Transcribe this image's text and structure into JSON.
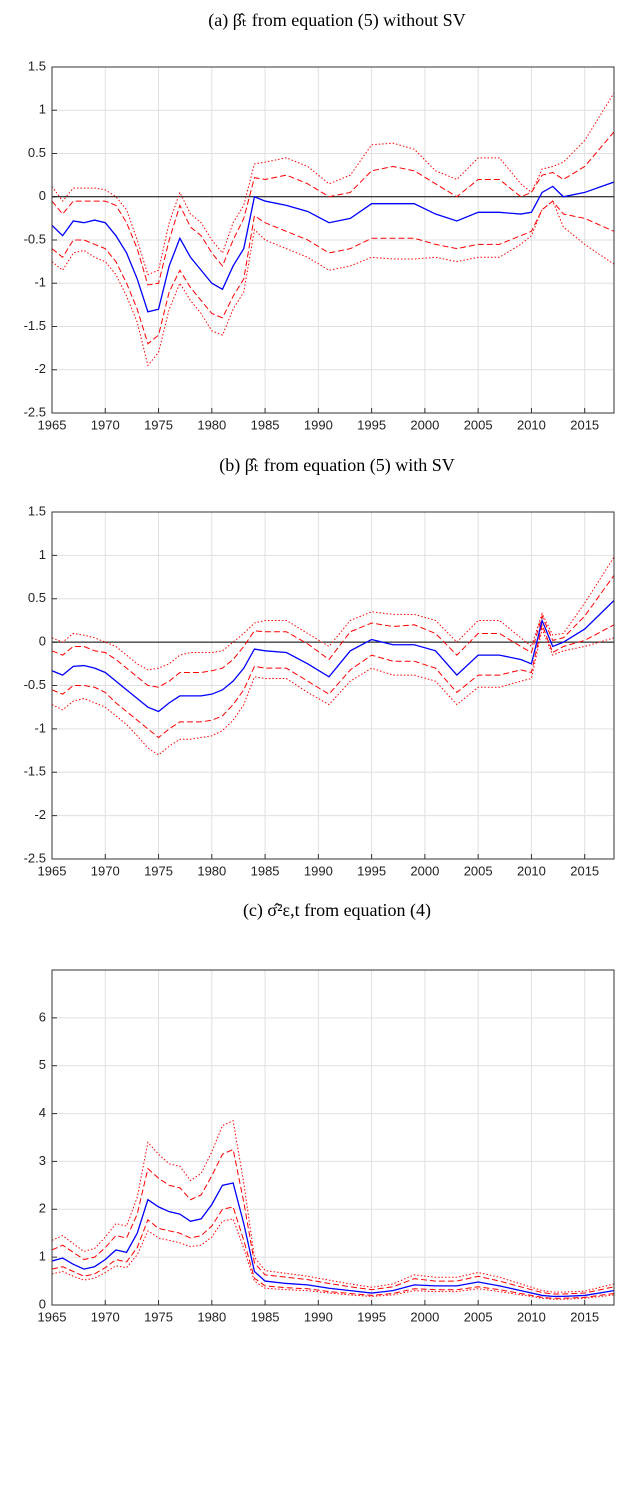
{
  "chart_data": [
    {
      "type": "line",
      "title": "(a) β̂ₜ from equation (5) without SV",
      "x": [
        1965,
        1966,
        1967,
        1968,
        1969,
        1970,
        1971,
        1972,
        1973,
        1974,
        1975,
        1976,
        1977,
        1978,
        1979,
        1980,
        1981,
        1982,
        1983,
        1984,
        1985,
        1987,
        1989,
        1991,
        1993,
        1995,
        1997,
        1999,
        2001,
        2003,
        2005,
        2007,
        2009,
        2010,
        2011,
        2012,
        2013,
        2015,
        2017.75
      ],
      "xlim": [
        1965,
        2017.75
      ],
      "xticks": [
        1965,
        1970,
        1975,
        1980,
        1985,
        1990,
        1995,
        2000,
        2005,
        2010,
        2015
      ],
      "ylim": [
        -2.5,
        1.5
      ],
      "yticks": [
        -2.5,
        -2,
        -1.5,
        -1,
        -0.5,
        0,
        0.5,
        1,
        1.5
      ],
      "grid": true,
      "hline": 0,
      "series": [
        {
          "color": "#ff0000",
          "style": "dotted",
          "values": [
            0.12,
            -0.05,
            0.1,
            0.1,
            0.1,
            0.08,
            0.0,
            -0.15,
            -0.5,
            -0.9,
            -0.85,
            -0.3,
            0.05,
            -0.2,
            -0.3,
            -0.5,
            -0.65,
            -0.3,
            -0.1,
            0.38,
            0.4,
            0.45,
            0.35,
            0.15,
            0.25,
            0.6,
            0.62,
            0.55,
            0.3,
            0.2,
            0.45,
            0.45,
            0.15,
            0.05,
            0.32,
            0.35,
            0.4,
            0.65,
            1.2
          ]
        },
        {
          "color": "#ff0000",
          "style": "dotted",
          "values": [
            -0.75,
            -0.85,
            -0.65,
            -0.62,
            -0.7,
            -0.75,
            -0.9,
            -1.15,
            -1.45,
            -1.95,
            -1.8,
            -1.3,
            -1.0,
            -1.2,
            -1.35,
            -1.55,
            -1.6,
            -1.3,
            -1.1,
            -0.38,
            -0.5,
            -0.6,
            -0.7,
            -0.85,
            -0.8,
            -0.7,
            -0.72,
            -0.72,
            -0.7,
            -0.75,
            -0.7,
            -0.7,
            -0.55,
            -0.45,
            -0.15,
            -0.05,
            -0.35,
            -0.55,
            -0.78
          ]
        },
        {
          "color": "#ff0000",
          "style": "dashed",
          "values": [
            -0.05,
            -0.2,
            -0.05,
            -0.05,
            -0.05,
            -0.05,
            -0.1,
            -0.3,
            -0.6,
            -1.02,
            -1.0,
            -0.5,
            -0.1,
            -0.35,
            -0.45,
            -0.65,
            -0.8,
            -0.5,
            -0.25,
            0.22,
            0.2,
            0.25,
            0.15,
            0.0,
            0.05,
            0.3,
            0.35,
            0.3,
            0.15,
            0.0,
            0.2,
            0.2,
            0.0,
            0.05,
            0.25,
            0.28,
            0.2,
            0.35,
            0.75
          ]
        },
        {
          "color": "#ff0000",
          "style": "dashed",
          "values": [
            -0.6,
            -0.7,
            -0.5,
            -0.5,
            -0.55,
            -0.6,
            -0.75,
            -1.0,
            -1.3,
            -1.7,
            -1.6,
            -1.1,
            -0.85,
            -1.05,
            -1.2,
            -1.35,
            -1.4,
            -1.15,
            -0.95,
            -0.22,
            -0.3,
            -0.4,
            -0.5,
            -0.65,
            -0.6,
            -0.48,
            -0.48,
            -0.48,
            -0.55,
            -0.6,
            -0.55,
            -0.55,
            -0.45,
            -0.4,
            -0.15,
            -0.05,
            -0.2,
            -0.25,
            -0.4
          ]
        },
        {
          "color": "#0000ff",
          "style": "solid",
          "values": [
            -0.33,
            -0.45,
            -0.28,
            -0.3,
            -0.27,
            -0.3,
            -0.45,
            -0.65,
            -0.95,
            -1.33,
            -1.3,
            -0.8,
            -0.48,
            -0.7,
            -0.85,
            -1.0,
            -1.07,
            -0.8,
            -0.6,
            0.0,
            -0.05,
            -0.1,
            -0.17,
            -0.3,
            -0.25,
            -0.08,
            -0.08,
            -0.08,
            -0.2,
            -0.28,
            -0.18,
            -0.18,
            -0.2,
            -0.18,
            0.05,
            0.12,
            0.0,
            0.05,
            0.17
          ]
        }
      ]
    },
    {
      "type": "line",
      "title": "(b) β̂ₜ from equation (5) with SV",
      "x": [
        1965,
        1966,
        1967,
        1968,
        1969,
        1970,
        1971,
        1972,
        1973,
        1974,
        1975,
        1976,
        1977,
        1978,
        1979,
        1980,
        1981,
        1982,
        1983,
        1984,
        1985,
        1987,
        1989,
        1991,
        1993,
        1995,
        1997,
        1999,
        2001,
        2003,
        2005,
        2007,
        2009,
        2010,
        2011,
        2012,
        2013,
        2015,
        2017.75
      ],
      "xlim": [
        1965,
        2017.75
      ],
      "xticks": [
        1965,
        1970,
        1975,
        1980,
        1985,
        1990,
        1995,
        2000,
        2005,
        2010,
        2015
      ],
      "ylim": [
        -2.5,
        1.5
      ],
      "yticks": [
        -2.5,
        -2,
        -1.5,
        -1,
        -0.5,
        0,
        0.5,
        1,
        1.5
      ],
      "grid": true,
      "hline": 0,
      "series": [
        {
          "color": "#ff0000",
          "style": "dotted",
          "values": [
            0.05,
            0.0,
            0.1,
            0.08,
            0.05,
            0.0,
            -0.05,
            -0.15,
            -0.25,
            -0.32,
            -0.3,
            -0.25,
            -0.15,
            -0.12,
            -0.12,
            -0.12,
            -0.1,
            0.0,
            0.1,
            0.22,
            0.25,
            0.25,
            0.1,
            -0.05,
            0.25,
            0.35,
            0.32,
            0.32,
            0.25,
            0.0,
            0.25,
            0.25,
            0.05,
            -0.05,
            0.33,
            0.08,
            0.1,
            0.45,
            0.98
          ]
        },
        {
          "color": "#ff0000",
          "style": "dotted",
          "values": [
            -0.72,
            -0.78,
            -0.68,
            -0.65,
            -0.7,
            -0.75,
            -0.85,
            -0.95,
            -1.08,
            -1.22,
            -1.3,
            -1.2,
            -1.12,
            -1.12,
            -1.1,
            -1.08,
            -1.02,
            -0.9,
            -0.72,
            -0.4,
            -0.42,
            -0.42,
            -0.58,
            -0.72,
            -0.45,
            -0.3,
            -0.38,
            -0.38,
            -0.45,
            -0.72,
            -0.52,
            -0.52,
            -0.45,
            -0.42,
            0.15,
            -0.15,
            -0.1,
            -0.05,
            0.05
          ]
        },
        {
          "color": "#ff0000",
          "style": "dashed",
          "values": [
            -0.1,
            -0.15,
            -0.05,
            -0.05,
            -0.1,
            -0.12,
            -0.2,
            -0.3,
            -0.4,
            -0.5,
            -0.52,
            -0.45,
            -0.35,
            -0.35,
            -0.35,
            -0.33,
            -0.3,
            -0.2,
            -0.05,
            0.13,
            0.12,
            0.12,
            -0.02,
            -0.2,
            0.12,
            0.22,
            0.18,
            0.2,
            0.1,
            -0.15,
            0.1,
            0.1,
            -0.05,
            -0.12,
            0.3,
            0.02,
            0.05,
            0.3,
            0.77
          ]
        },
        {
          "color": "#ff0000",
          "style": "dashed",
          "values": [
            -0.55,
            -0.6,
            -0.5,
            -0.5,
            -0.52,
            -0.58,
            -0.7,
            -0.8,
            -0.9,
            -1.0,
            -1.1,
            -1.0,
            -0.92,
            -0.92,
            -0.92,
            -0.9,
            -0.85,
            -0.72,
            -0.55,
            -0.28,
            -0.3,
            -0.3,
            -0.45,
            -0.6,
            -0.32,
            -0.15,
            -0.22,
            -0.22,
            -0.3,
            -0.58,
            -0.38,
            -0.38,
            -0.32,
            -0.35,
            0.2,
            -0.12,
            -0.05,
            0.02,
            0.2
          ]
        },
        {
          "color": "#0000ff",
          "style": "solid",
          "values": [
            -0.33,
            -0.38,
            -0.28,
            -0.27,
            -0.3,
            -0.35,
            -0.45,
            -0.55,
            -0.65,
            -0.75,
            -0.8,
            -0.7,
            -0.62,
            -0.62,
            -0.62,
            -0.6,
            -0.55,
            -0.45,
            -0.3,
            -0.08,
            -0.1,
            -0.12,
            -0.25,
            -0.4,
            -0.1,
            0.03,
            -0.03,
            -0.03,
            -0.1,
            -0.38,
            -0.15,
            -0.15,
            -0.2,
            -0.25,
            0.25,
            -0.05,
            0.0,
            0.15,
            0.48
          ]
        }
      ]
    },
    {
      "type": "line",
      "title": "(c) σ̂²ε,t from equation (4)",
      "x": [
        1965,
        1966,
        1967,
        1968,
        1969,
        1970,
        1971,
        1972,
        1973,
        1974,
        1975,
        1976,
        1977,
        1978,
        1979,
        1980,
        1981,
        1982,
        1983,
        1984,
        1985,
        1987,
        1989,
        1991,
        1993,
        1995,
        1997,
        1999,
        2001,
        2003,
        2005,
        2007,
        2009,
        2010,
        2011,
        2012,
        2013,
        2015,
        2017.75
      ],
      "xlim": [
        1965,
        2017.75
      ],
      "xticks": [
        1965,
        1970,
        1975,
        1980,
        1985,
        1990,
        1995,
        2000,
        2005,
        2010,
        2015
      ],
      "ylim": [
        0,
        7
      ],
      "yticks": [
        0,
        1,
        2,
        3,
        4,
        5,
        6
      ],
      "grid": true,
      "series": [
        {
          "color": "#ff0000",
          "style": "dotted",
          "values": [
            1.35,
            1.45,
            1.28,
            1.12,
            1.18,
            1.42,
            1.7,
            1.65,
            2.25,
            3.4,
            3.15,
            2.95,
            2.9,
            2.6,
            2.75,
            3.2,
            3.75,
            3.85,
            2.55,
            1.0,
            0.72,
            0.66,
            0.6,
            0.52,
            0.44,
            0.37,
            0.44,
            0.63,
            0.58,
            0.58,
            0.68,
            0.58,
            0.44,
            0.37,
            0.3,
            0.27,
            0.27,
            0.29,
            0.44
          ]
        },
        {
          "color": "#ff0000",
          "style": "dotted",
          "values": [
            0.65,
            0.7,
            0.6,
            0.52,
            0.56,
            0.68,
            0.82,
            0.78,
            1.05,
            1.55,
            1.4,
            1.35,
            1.3,
            1.22,
            1.25,
            1.42,
            1.75,
            1.8,
            1.18,
            0.5,
            0.35,
            0.32,
            0.3,
            0.25,
            0.21,
            0.18,
            0.21,
            0.3,
            0.28,
            0.28,
            0.34,
            0.28,
            0.21,
            0.18,
            0.14,
            0.12,
            0.12,
            0.14,
            0.21
          ]
        },
        {
          "color": "#ff0000",
          "style": "dashed",
          "values": [
            1.15,
            1.25,
            1.1,
            0.95,
            1.0,
            1.2,
            1.45,
            1.4,
            1.9,
            2.85,
            2.65,
            2.5,
            2.45,
            2.2,
            2.3,
            2.7,
            3.15,
            3.25,
            2.15,
            0.88,
            0.63,
            0.58,
            0.53,
            0.45,
            0.38,
            0.32,
            0.38,
            0.55,
            0.5,
            0.5,
            0.6,
            0.5,
            0.38,
            0.32,
            0.26,
            0.23,
            0.23,
            0.25,
            0.38
          ]
        },
        {
          "color": "#ff0000",
          "style": "dashed",
          "values": [
            0.75,
            0.8,
            0.7,
            0.6,
            0.65,
            0.78,
            0.95,
            0.9,
            1.2,
            1.78,
            1.6,
            1.55,
            1.5,
            1.4,
            1.45,
            1.65,
            2.0,
            2.05,
            1.35,
            0.56,
            0.4,
            0.36,
            0.34,
            0.28,
            0.24,
            0.2,
            0.24,
            0.34,
            0.32,
            0.32,
            0.38,
            0.32,
            0.24,
            0.2,
            0.16,
            0.14,
            0.14,
            0.16,
            0.24
          ]
        },
        {
          "color": "#0000ff",
          "style": "solid",
          "values": [
            0.92,
            0.98,
            0.85,
            0.75,
            0.8,
            0.95,
            1.15,
            1.1,
            1.5,
            2.2,
            2.05,
            1.95,
            1.9,
            1.75,
            1.8,
            2.1,
            2.5,
            2.55,
            1.7,
            0.7,
            0.5,
            0.45,
            0.42,
            0.35,
            0.3,
            0.25,
            0.3,
            0.42,
            0.4,
            0.4,
            0.48,
            0.4,
            0.3,
            0.25,
            0.2,
            0.18,
            0.18,
            0.2,
            0.3
          ]
        }
      ]
    }
  ]
}
